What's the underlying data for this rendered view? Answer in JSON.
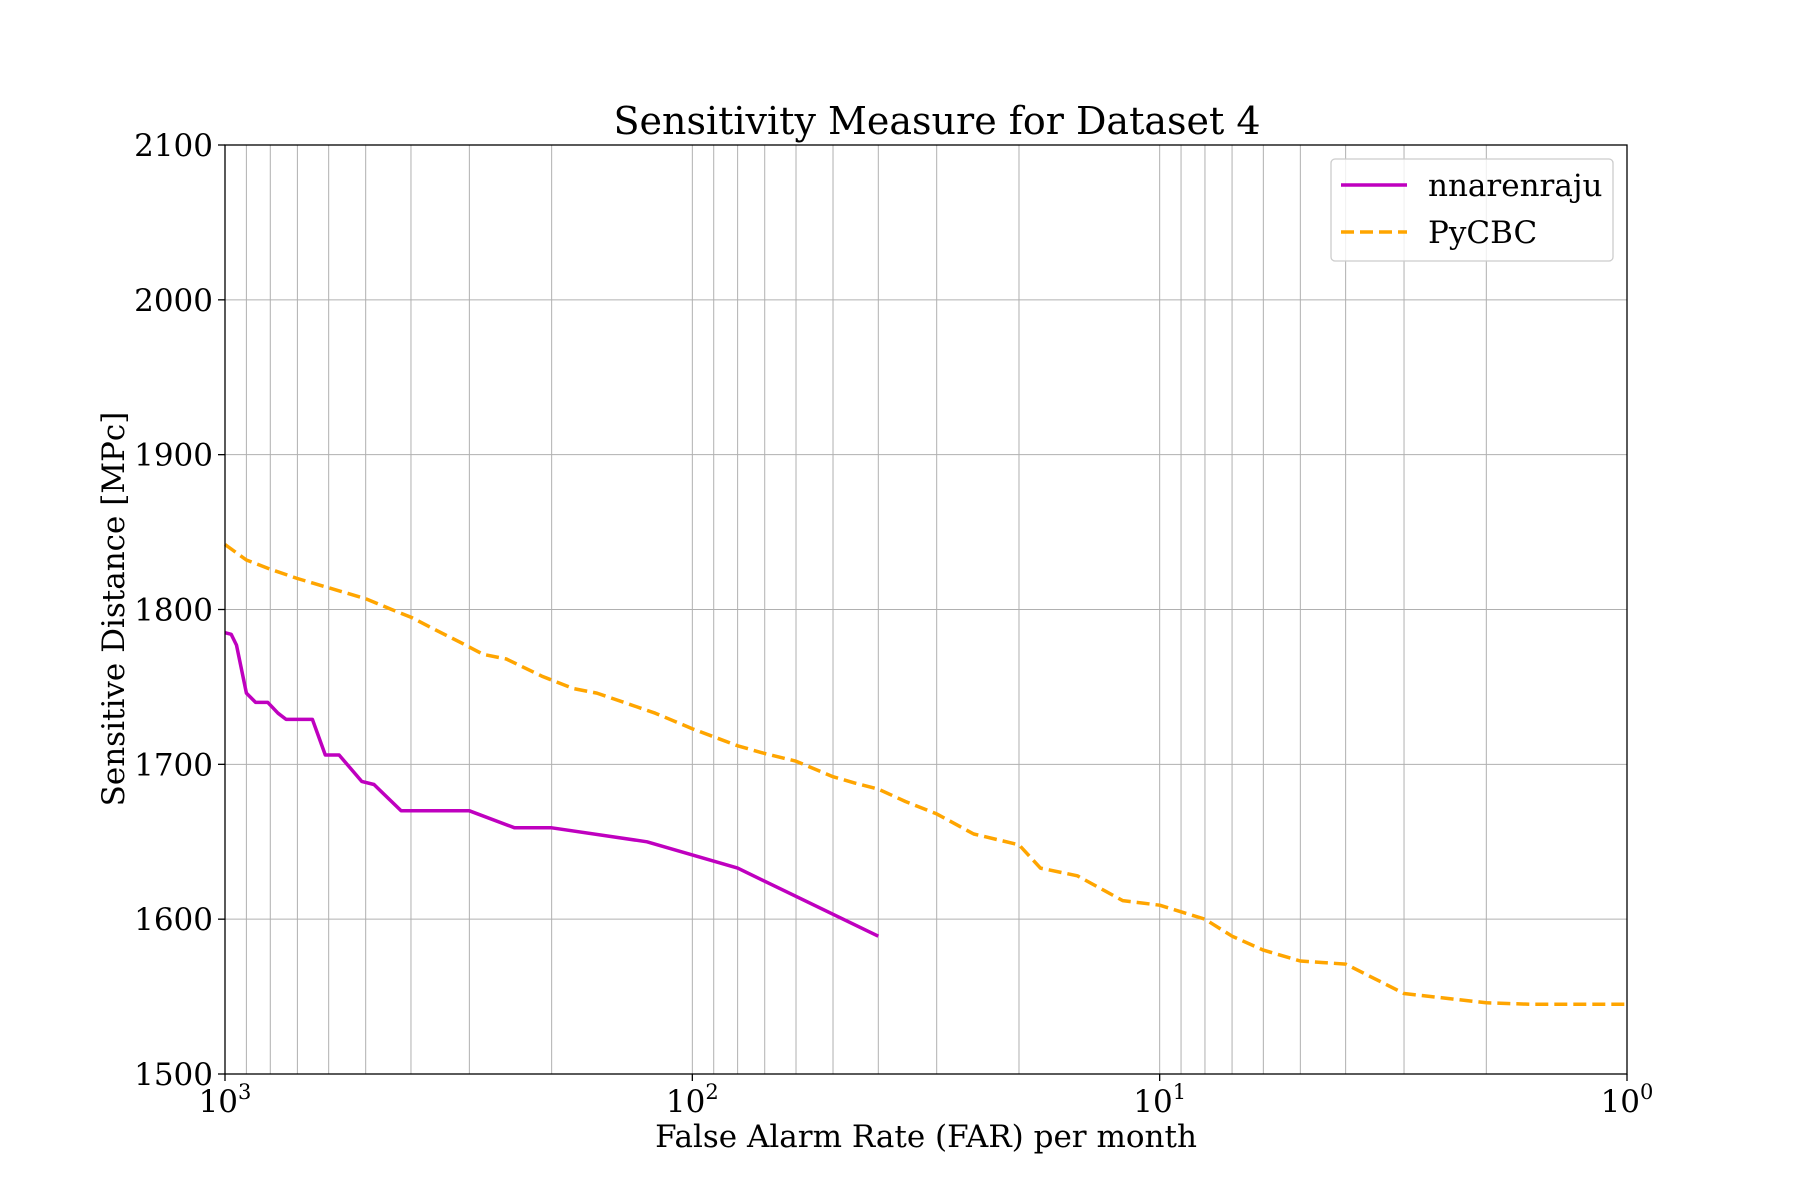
{
  "chart_data": {
    "type": "line",
    "title": "Sensitivity Measure for Dataset 4",
    "xlabel": "False Alarm Rate (FAR) per month",
    "ylabel": "Sensitive Distance [MPc]",
    "xscale": "log",
    "xaxis_reversed": true,
    "xlim": [
      1000,
      1
    ],
    "ylim": [
      1500,
      2100
    ],
    "grid": true,
    "legend_position": "top-right",
    "xticks": [
      {
        "value": 1000,
        "base": "10",
        "exp": "3"
      },
      {
        "value": 100,
        "base": "10",
        "exp": "2"
      },
      {
        "value": 10,
        "base": "10",
        "exp": "1"
      },
      {
        "value": 1,
        "base": "10",
        "exp": "0"
      }
    ],
    "yticks": [
      "1500",
      "1600",
      "1700",
      "1800",
      "1900",
      "2000",
      "2100"
    ],
    "series": [
      {
        "name": "nnarenraju",
        "color": "#bf00bf",
        "style": "solid",
        "x": [
          1000,
          970,
          945,
          900,
          860,
          810,
          770,
          740,
          700,
          650,
          610,
          570,
          510,
          480,
          420,
          380,
          300,
          240,
          200,
          125,
          80,
          40
        ],
        "y": [
          1785,
          1784,
          1777,
          1746,
          1740,
          1740,
          1733,
          1729,
          1729,
          1729,
          1706,
          1706,
          1689,
          1687,
          1670,
          1670,
          1670,
          1659,
          1659,
          1650,
          1633,
          1589
        ]
      },
      {
        "name": "PyCBC",
        "color": "#ffa500",
        "style": "dashed",
        "x": [
          1000,
          900,
          800,
          700,
          600,
          500,
          440,
          400,
          350,
          310,
          280,
          250,
          210,
          180,
          160,
          140,
          120,
          100,
          80,
          70,
          60,
          50,
          45,
          40,
          35,
          30,
          25,
          20,
          18,
          15,
          12,
          10,
          8,
          7,
          6,
          5,
          4.5,
          4,
          3,
          2,
          1.6,
          1
        ],
        "y": [
          1842,
          1832,
          1826,
          1820,
          1814,
          1807,
          1800,
          1795,
          1786,
          1778,
          1771,
          1768,
          1757,
          1749,
          1746,
          1740,
          1733,
          1723,
          1712,
          1707,
          1702,
          1692,
          1688,
          1684,
          1676,
          1668,
          1655,
          1648,
          1633,
          1628,
          1612,
          1609,
          1600,
          1589,
          1580,
          1573,
          1572,
          1571,
          1552,
          1546,
          1545,
          1545
        ]
      }
    ]
  }
}
